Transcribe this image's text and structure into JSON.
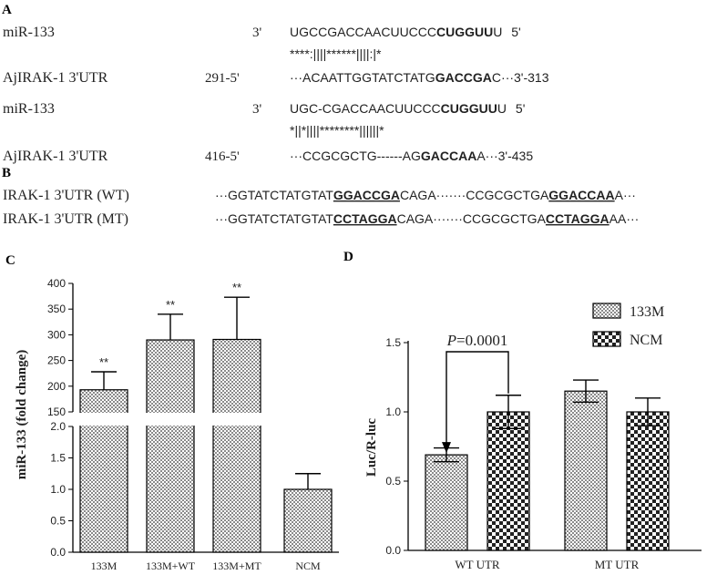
{
  "panels": {
    "a": "A",
    "b": "B",
    "c": "C",
    "d": "D"
  },
  "alignment": {
    "rows": [
      {
        "name": "miR-133",
        "pos": "3'",
        "seq_parts": [
          {
            "t": "UGCCGACCAACUUCCC",
            "bold": false
          },
          {
            "t": "CUGGUU",
            "bold": true
          },
          {
            "t": "U",
            "bold": false
          }
        ],
        "end": "5'"
      },
      {
        "name": "",
        "pos": "",
        "seq_parts": [
          {
            "t": "****:||||******||||:|*",
            "bold": false
          }
        ],
        "end": ""
      },
      {
        "name": "AjIRAK-1 3'UTR",
        "pos": "291-5'",
        "seq_parts": [
          {
            "t": "···ACAATTGGTATCTATG",
            "bold": false
          },
          {
            "t": "GACCGA",
            "bold": true
          },
          {
            "t": "C···3'-313",
            "bold": false
          }
        ],
        "end": ""
      },
      {
        "name": "miR-133",
        "pos": "3'",
        "seq_parts": [
          {
            "t": "UGC-CGACCAACUUCCC",
            "bold": false
          },
          {
            "t": "CUGGUU",
            "bold": true
          },
          {
            "t": "U",
            "bold": false
          }
        ],
        "end": "5'"
      },
      {
        "name": "",
        "pos": "",
        "seq_parts": [
          {
            "t": "*||*||||********||||||*",
            "bold": false
          }
        ],
        "end": ""
      },
      {
        "name": "AjIRAK-1 3'UTR",
        "pos": "416-5'",
        "seq_parts": [
          {
            "t": "···CCGCGCTG------AG",
            "bold": false
          },
          {
            "t": "GACCAA",
            "bold": true
          },
          {
            "t": "A···3'-435",
            "bold": false
          }
        ],
        "end": ""
      }
    ]
  },
  "utr_sequences": [
    {
      "name": "IRAK-1 3'UTR (WT)",
      "parts": [
        {
          "t": "···GGTATCTATGTAT",
          "style": "plain"
        },
        {
          "t": "GGACCGA",
          "style": "bold-underline"
        },
        {
          "t": "CAGA·······CCGCGCTGA",
          "style": "plain"
        },
        {
          "t": "GGACCAA",
          "style": "bold-underline"
        },
        {
          "t": "A···",
          "style": "plain"
        }
      ]
    },
    {
      "name": "IRAK-1 3'UTR (MT)",
      "parts": [
        {
          "t": "···GGTATCTATGTAT",
          "style": "plain"
        },
        {
          "t": "CCTAGGA",
          "style": "bold-underline"
        },
        {
          "t": "CAGA·······CCGCGCTGA",
          "style": "plain"
        },
        {
          "t": "CCTAGGA",
          "style": "bold-underline"
        },
        {
          "t": "AA···",
          "style": "plain"
        }
      ]
    }
  ],
  "chart_data": [
    {
      "type": "bar",
      "panel": "C",
      "categories": [
        "133M",
        "133M+WT",
        "133M+MT",
        "NCM"
      ],
      "values": [
        193,
        290,
        291,
        1.0
      ],
      "errors": [
        35,
        50,
        82,
        0.25
      ],
      "annotations": [
        "**",
        "**",
        "**",
        ""
      ],
      "ylabel": "miR-133 (fold change)",
      "y_axis_break": true,
      "lower_segment": {
        "range": [
          0,
          2.0
        ],
        "ticks": [
          "0.0",
          "0.5",
          "1.0",
          "1.5",
          "2.0"
        ]
      },
      "upper_segment": {
        "range": [
          150,
          400
        ],
        "ticks": [
          "150",
          "200",
          "250",
          "300",
          "350",
          "400"
        ]
      }
    },
    {
      "type": "bar",
      "panel": "D",
      "categories": [
        "WT UTR",
        "MT UTR"
      ],
      "series": [
        {
          "name": "133M",
          "values": [
            0.69,
            1.15
          ],
          "errors": [
            0.05,
            0.08
          ]
        },
        {
          "name": "NCM",
          "values": [
            1.0,
            1.0
          ],
          "errors": [
            0.12,
            0.1
          ]
        }
      ],
      "ylabel": "Luc/R-luc",
      "ylim": [
        0,
        1.5
      ],
      "yticks": [
        "0.0",
        "0.5",
        "1.0",
        "1.5"
      ],
      "annotation": {
        "p_label": "P",
        "p_value": "=0.0001"
      },
      "legend_position": "top-right"
    }
  ]
}
